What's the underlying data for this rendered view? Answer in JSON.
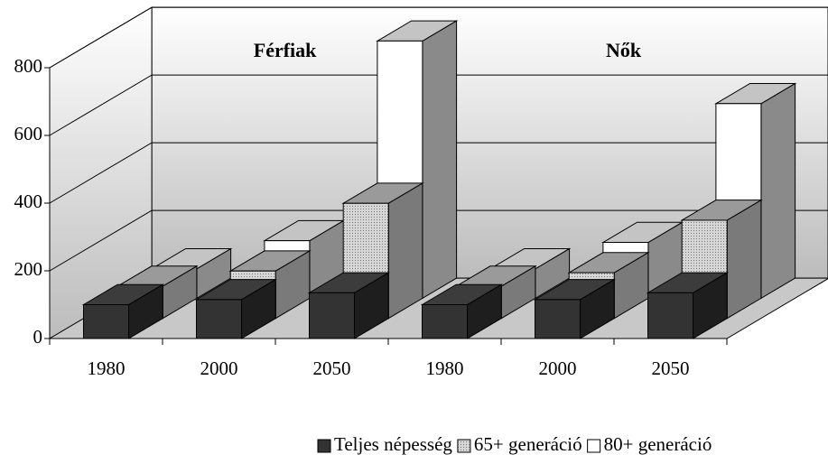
{
  "chart_data": {
    "type": "bar3d",
    "annotations": [
      "Férfiak",
      "Nők"
    ],
    "categories": [
      "1980",
      "2000",
      "2050",
      "1980",
      "2000",
      "2050"
    ],
    "series": [
      {
        "name": "Teljes népesség",
        "color": "#333333",
        "values": [
          100,
          115,
          135,
          100,
          115,
          135
        ]
      },
      {
        "name": "65+ generáció",
        "color": "#bdbdbd",
        "values": [
          95,
          140,
          340,
          95,
          135,
          290
        ]
      },
      {
        "name": "80+ generáció",
        "color": "#ffffff",
        "values": [
          87,
          170,
          760,
          87,
          165,
          575
        ]
      }
    ],
    "ylim": [
      0,
      800
    ],
    "yticks": [
      0,
      200,
      400,
      600,
      800
    ],
    "grid": true
  }
}
